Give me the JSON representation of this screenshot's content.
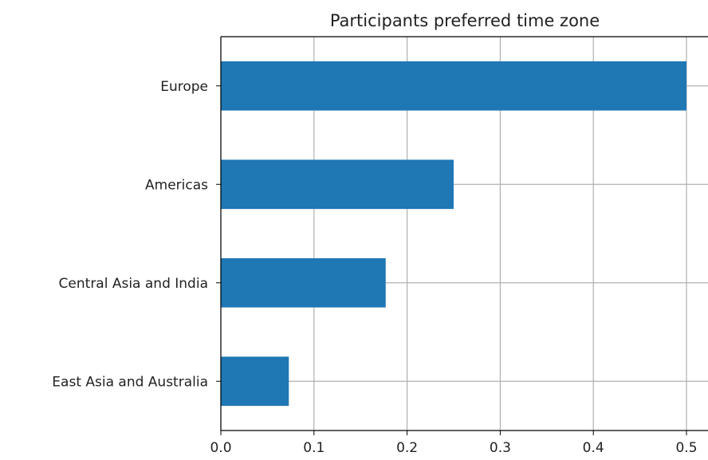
{
  "chart_data": {
    "type": "bar",
    "orientation": "horizontal",
    "title": "Participants preferred time zone",
    "xlabel": "",
    "ylabel": "",
    "categories": [
      "Europe",
      "Americas",
      "Central Asia and India",
      "East Asia and Australia"
    ],
    "values": [
      0.5,
      0.25,
      0.177,
      0.073
    ],
    "xlim": [
      0.0,
      0.5
    ],
    "xticks": [
      "0.0",
      "0.1",
      "0.2",
      "0.3",
      "0.4",
      "0.5"
    ],
    "grid": true,
    "bar_color": "#1f77b4",
    "grid_color": "#b0b0b0"
  }
}
